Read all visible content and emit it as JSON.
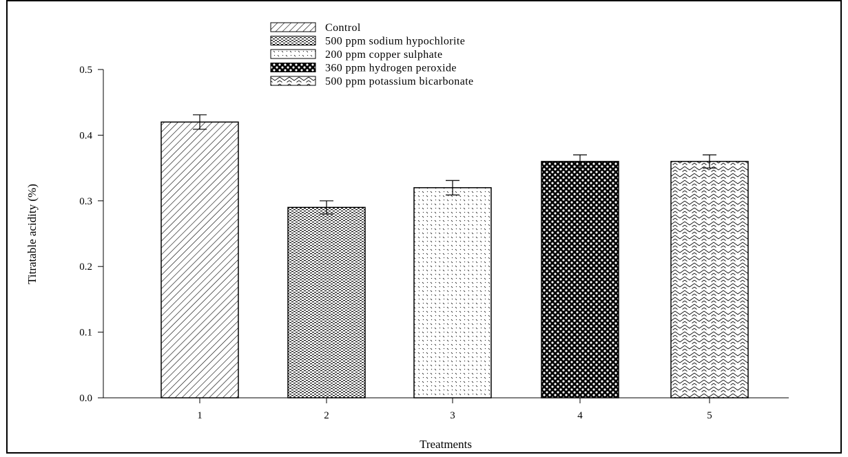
{
  "chart_data": {
    "type": "bar",
    "title": "",
    "xlabel": "Treatments",
    "ylabel": "Titratable acidity (%)",
    "ylim": [
      0,
      0.5
    ],
    "yticks": [
      "0.0",
      "0.1",
      "0.2",
      "0.3",
      "0.4",
      "0.5"
    ],
    "ytick_values": [
      0,
      0.1,
      0.2,
      0.3,
      0.4,
      0.5
    ],
    "categories": [
      "1",
      "2",
      "3",
      "4",
      "5"
    ],
    "values": [
      0.42,
      0.29,
      0.32,
      0.36,
      0.36
    ],
    "errors": [
      0.011,
      0.01,
      0.011,
      0.01,
      0.01
    ],
    "grid": false,
    "legend_position": "top-center",
    "legend": [
      {
        "label": "Control",
        "pattern": "diagonal-hatch"
      },
      {
        "label": "500 ppm sodium hypochlorite",
        "pattern": "dense-dots"
      },
      {
        "label": "200 ppm copper sulphate",
        "pattern": "sparse-ticks"
      },
      {
        "label": "360 ppm hydrogen peroxide",
        "pattern": "checker"
      },
      {
        "label": "500 ppm potassium bicarbonate",
        "pattern": "zigzag"
      }
    ],
    "colors": {
      "bar_stroke": "#000000",
      "bar_fill_background": "#ffffff"
    }
  }
}
